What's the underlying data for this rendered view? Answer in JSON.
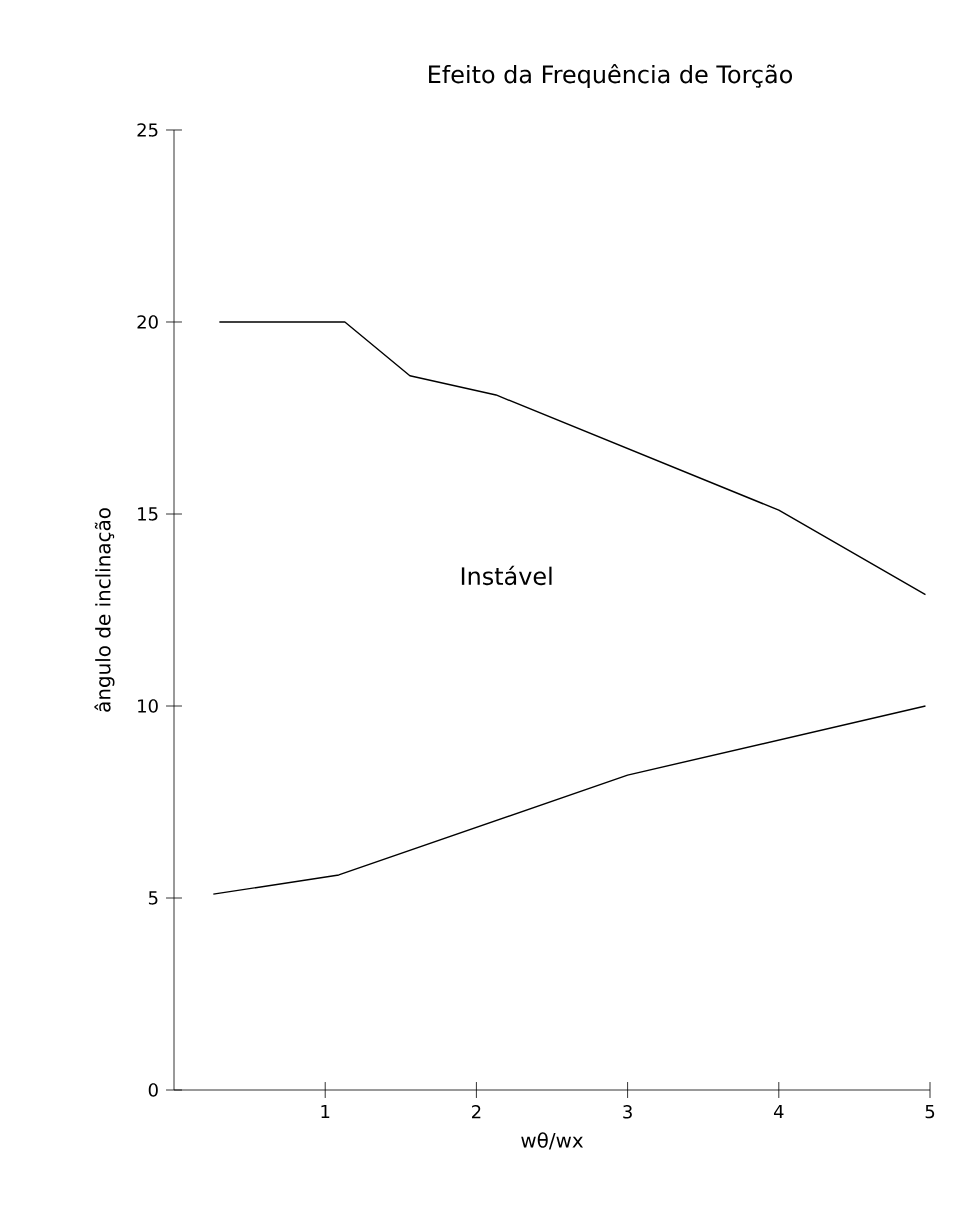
{
  "chart_data": {
    "type": "line",
    "title": "Efeito da Frequência de Torção",
    "xlabel": "wθ/wx",
    "ylabel": "ângulo de inclinação",
    "series": [
      {
        "color": "#000000",
        "x": [
          0.3,
          1.13,
          1.56,
          2.13,
          4.0,
          4.97
        ],
        "values": [
          20,
          20,
          18.6,
          18.1,
          15.1,
          12.9
        ]
      },
      {
        "color": "#000000",
        "x": [
          0.26,
          1.09,
          3.0,
          4.97
        ],
        "values": [
          5.1,
          5.6,
          8.2,
          10.0
        ]
      }
    ],
    "xlim": [
      0,
      5
    ],
    "ylim": [
      0,
      25
    ],
    "xticks": [
      1,
      2,
      3,
      4,
      5
    ],
    "yticks": [
      0,
      5,
      10,
      15,
      20,
      25
    ],
    "annotations": [
      "Instável"
    ],
    "grid": false,
    "marker": "none",
    "line_style": "solid"
  }
}
